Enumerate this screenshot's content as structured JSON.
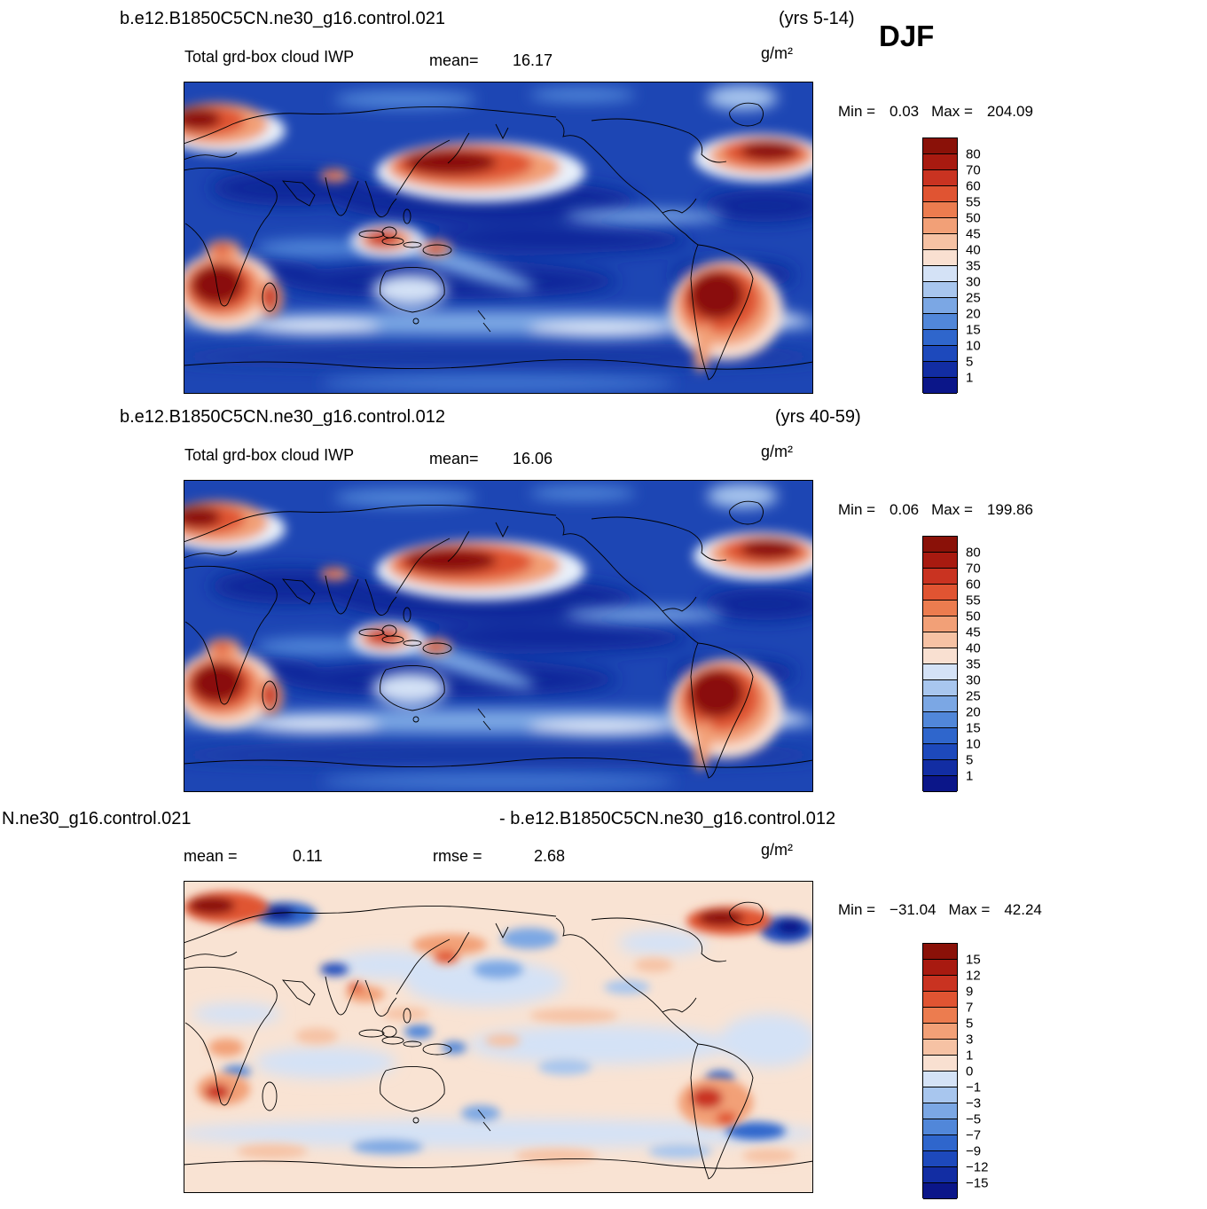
{
  "page": {
    "season": "DJF"
  },
  "colors": {
    "scale16": [
      "#0b1689",
      "#122da3",
      "#1d49bc",
      "#2f66cc",
      "#5187d9",
      "#7ba7e4",
      "#a8c6ee",
      "#d4e2f6",
      "#f9e0d1",
      "#f6c2a4",
      "#f2a077",
      "#ec7c4f",
      "#e05432",
      "#c93321",
      "#a81a10",
      "#8a1108"
    ]
  },
  "panels": [
    {
      "id": "case1",
      "title": "b.e12.B1850C5CN.ne30_g16.control.021",
      "years": "(yrs 5-14)",
      "variable": "Total grd-box cloud IWP",
      "stats": [
        {
          "label": "mean=",
          "value": "16.17"
        }
      ],
      "units": "g/m²",
      "min_label": "Min =",
      "min": "0.03",
      "max_label": "Max =",
      "max": "204.09",
      "colorbar_labels": [
        "80",
        "70",
        "60",
        "55",
        "50",
        "45",
        "40",
        "35",
        "30",
        "25",
        "20",
        "15",
        "10",
        "5",
        "1"
      ]
    },
    {
      "id": "case2",
      "title": "b.e12.B1850C5CN.ne30_g16.control.012",
      "years": "(yrs 40-59)",
      "variable": "Total grd-box cloud IWP",
      "stats": [
        {
          "label": "mean=",
          "value": "16.06"
        }
      ],
      "units": "g/m²",
      "min_label": "Min =",
      "min": "0.06",
      "max_label": "Max =",
      "max": "199.86",
      "colorbar_labels": [
        "80",
        "70",
        "60",
        "55",
        "50",
        "45",
        "40",
        "35",
        "30",
        "25",
        "20",
        "15",
        "10",
        "5",
        "1"
      ]
    },
    {
      "id": "diff",
      "title_left": "N.ne30_g16.control.021",
      "title_right": "- b.e12.B1850C5CN.ne30_g16.control.012",
      "stats": [
        {
          "label": "mean =",
          "value": "0.11"
        },
        {
          "label": "rmse =",
          "value": "2.68"
        }
      ],
      "units": "g/m²",
      "min_label": "Min =",
      "min": "−31.04",
      "max_label": "Max =",
      "max": "42.24",
      "colorbar_labels": [
        "15",
        "12",
        "9",
        "7",
        "5",
        "3",
        "1",
        "0",
        "−1",
        "−3",
        "−5",
        "−7",
        "−9",
        "−12",
        "−15"
      ]
    }
  ],
  "chart_data": [
    {
      "type": "heatmap",
      "title": "b.e12.B1850C5CN.ne30_g16.control.021",
      "variable": "Total grd-box cloud IWP",
      "season": "DJF",
      "years": "5-14",
      "units": "g/m2",
      "mean": 16.17,
      "min": 0.03,
      "max": 204.09,
      "levels": [
        1,
        5,
        10,
        15,
        20,
        25,
        30,
        35,
        40,
        45,
        50,
        55,
        60,
        70,
        80
      ],
      "projection": "global latitude-longitude (0-360E, 90S-90N)",
      "colormap": "blue (low) to white to red (high), 16 classes",
      "legend_position": "right",
      "notes": "High IWP (red) over NW Pacific storm track, North Atlantic, southern Africa, Madagascar, Amazon/South America, Maritime Continent; low IWP (dark blue) over subtropical oceans."
    },
    {
      "type": "heatmap",
      "title": "b.e12.B1850C5CN.ne30_g16.control.012",
      "variable": "Total grd-box cloud IWP",
      "season": "DJF",
      "years": "40-59",
      "units": "g/m2",
      "mean": 16.06,
      "min": 0.06,
      "max": 199.86,
      "levels": [
        1,
        5,
        10,
        15,
        20,
        25,
        30,
        35,
        40,
        45,
        50,
        55,
        60,
        70,
        80
      ],
      "projection": "global latitude-longitude (0-360E, 90S-90N)",
      "colormap": "blue (low) to white to red (high), 16 classes",
      "legend_position": "right",
      "notes": "Pattern nearly identical to case 021."
    },
    {
      "type": "heatmap",
      "title": "b.e12.B1850C5CN.ne30_g16.control.021 - b.e12.B1850C5CN.ne30_g16.control.012",
      "variable": "Total grd-box cloud IWP difference",
      "season": "DJF",
      "units": "g/m2",
      "mean": 0.11,
      "rmse": 2.68,
      "min": -31.04,
      "max": 42.24,
      "levels": [
        -15,
        -12,
        -9,
        -7,
        -5,
        -3,
        -1,
        0,
        1,
        3,
        5,
        7,
        9,
        12,
        15
      ],
      "projection": "global latitude-longitude (0-360E, 90S-90N)",
      "colormap": "blue (negative) to white to red (positive), 16 classes",
      "legend_position": "right",
      "notes": "Mostly near-zero pale field with scattered positive (red) and negative (blue) patches, strongest near Norwegian Sea, North Atlantic and South America."
    }
  ]
}
